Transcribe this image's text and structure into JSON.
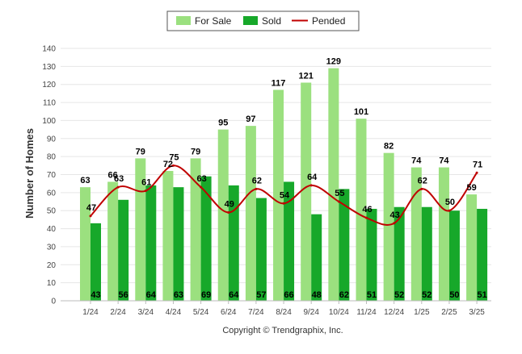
{
  "chart_data": {
    "type": "bar",
    "title": "",
    "xlabel": "",
    "ylabel": "Number of Homes",
    "ylim": [
      0,
      140
    ],
    "yticks": [
      0,
      10,
      20,
      30,
      40,
      50,
      60,
      70,
      80,
      90,
      100,
      110,
      120,
      130,
      140
    ],
    "grid": true,
    "legend_position": "top-center",
    "categories": [
      "1/24",
      "2/24",
      "3/24",
      "4/24",
      "5/24",
      "6/24",
      "7/24",
      "8/24",
      "9/24",
      "10/24",
      "11/24",
      "12/24",
      "1/25",
      "2/25",
      "3/25"
    ],
    "series": [
      {
        "name": "For Sale",
        "kind": "bar",
        "color": "#9be07f",
        "values": [
          63,
          66,
          79,
          72,
          79,
          95,
          97,
          117,
          121,
          129,
          101,
          82,
          74,
          74,
          59
        ]
      },
      {
        "name": "Sold",
        "kind": "bar",
        "color": "#17a82a",
        "values": [
          43,
          56,
          64,
          63,
          69,
          64,
          57,
          66,
          48,
          62,
          51,
          52,
          52,
          50,
          51
        ]
      },
      {
        "name": "Pended",
        "kind": "line",
        "color": "#c00000",
        "values": [
          47,
          63,
          61,
          75,
          63,
          49,
          62,
          54,
          64,
          55,
          46,
          43,
          62,
          50,
          71
        ]
      }
    ],
    "footer": "Copyright © Trendgraphix, Inc."
  }
}
